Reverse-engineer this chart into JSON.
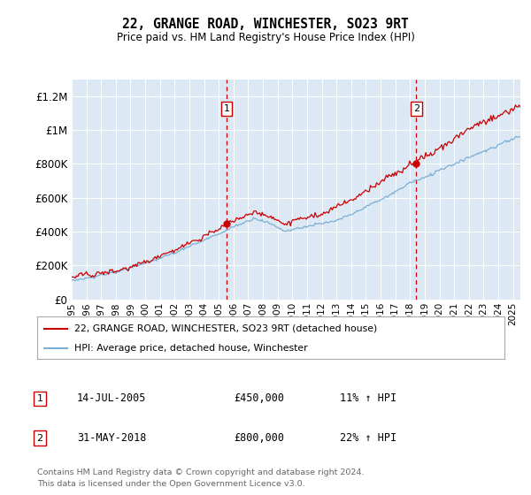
{
  "title": "22, GRANGE ROAD, WINCHESTER, SO23 9RT",
  "subtitle": "Price paid vs. HM Land Registry's House Price Index (HPI)",
  "legend_line1": "22, GRANGE ROAD, WINCHESTER, SO23 9RT (detached house)",
  "legend_line2": "HPI: Average price, detached house, Winchester",
  "annotation1_label": "1",
  "annotation1_date": "14-JUL-2005",
  "annotation1_price": "£450,000",
  "annotation1_hpi": "11% ↑ HPI",
  "annotation2_label": "2",
  "annotation2_date": "31-MAY-2018",
  "annotation2_price": "£800,000",
  "annotation2_hpi": "22% ↑ HPI",
  "footnote1": "Contains HM Land Registry data © Crown copyright and database right 2024.",
  "footnote2": "This data is licensed under the Open Government Licence v3.0.",
  "red_color": "#cc0000",
  "blue_color": "#7bafd4",
  "background_color": "#dce9f5",
  "plot_bg_color": "#ffffff",
  "ylim": [
    0,
    1300000
  ],
  "yticks": [
    0,
    200000,
    400000,
    600000,
    800000,
    1000000,
    1200000
  ],
  "ytick_labels": [
    "£0",
    "£200K",
    "£400K",
    "£600K",
    "£800K",
    "£1M",
    "£1.2M"
  ],
  "vline1_x": 2005.54,
  "vline2_x": 2018.42,
  "sale1_x": 2005.54,
  "sale1_y": 450000,
  "sale2_x": 2018.42,
  "sale2_y": 800000,
  "xmin": 1995,
  "xmax": 2025.5
}
